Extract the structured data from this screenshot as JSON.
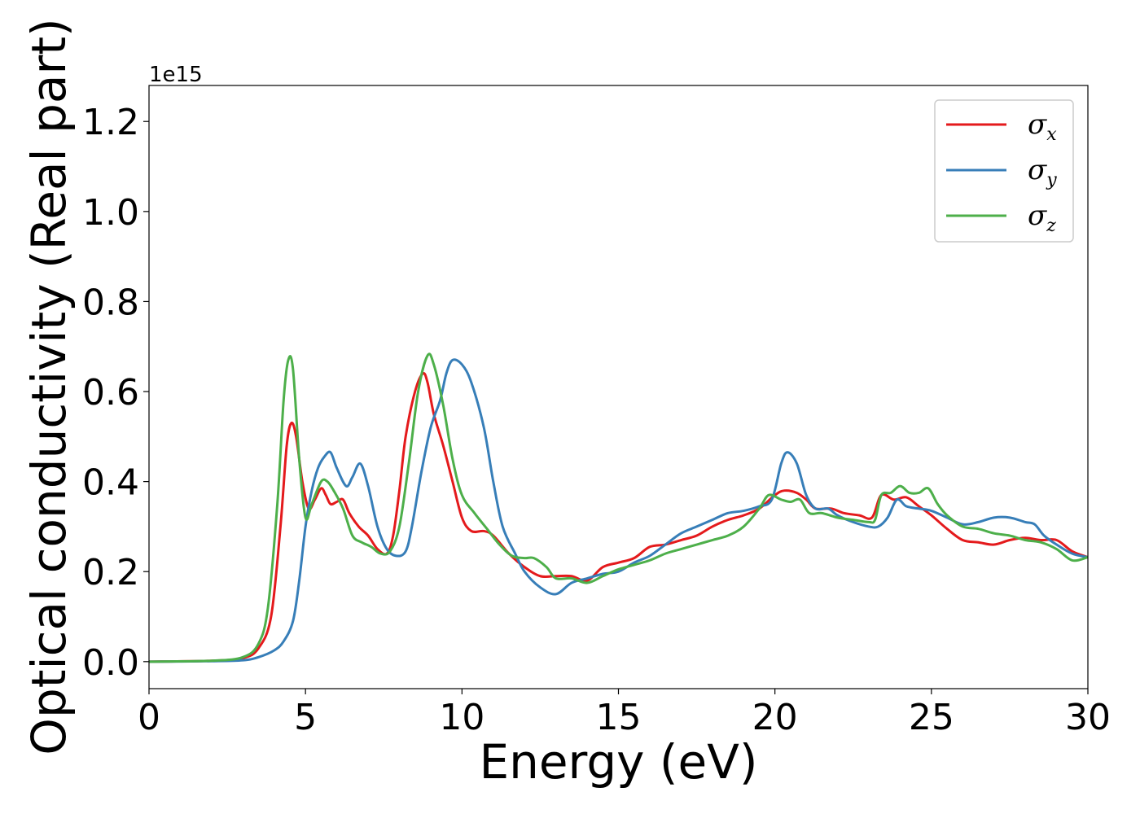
{
  "chart_data": {
    "type": "line",
    "title": "",
    "xlabel": "Energy (eV)",
    "ylabel": "Optical conductivity (Real part)",
    "y_offset_label": "1e15",
    "xlim": [
      0,
      30
    ],
    "ylim": [
      -0.06,
      1.28
    ],
    "x_ticks": [
      0,
      5,
      10,
      15,
      20,
      25,
      30
    ],
    "y_ticks": [
      0.0,
      0.2,
      0.4,
      0.6,
      0.8,
      1.0,
      1.2
    ],
    "x_tick_labels": [
      "0",
      "5",
      "10",
      "15",
      "20",
      "25",
      "30"
    ],
    "y_tick_labels": [
      "0.0",
      "0.2",
      "0.4",
      "0.6",
      "0.8",
      "1.0",
      "1.2"
    ],
    "grid": false,
    "legend_position": "top-right",
    "series": [
      {
        "name": "σx",
        "symbol": "σ",
        "subscript": "x",
        "color": "#e41a1c",
        "points": [
          [
            0,
            0.0
          ],
          [
            2,
            0.002
          ],
          [
            3,
            0.008
          ],
          [
            3.5,
            0.03
          ],
          [
            3.9,
            0.1
          ],
          [
            4.2,
            0.3
          ],
          [
            4.4,
            0.48
          ],
          [
            4.55,
            0.53
          ],
          [
            4.7,
            0.5
          ],
          [
            4.9,
            0.4
          ],
          [
            5.1,
            0.34
          ],
          [
            5.3,
            0.36
          ],
          [
            5.5,
            0.385
          ],
          [
            5.65,
            0.37
          ],
          [
            5.8,
            0.35
          ],
          [
            6.0,
            0.355
          ],
          [
            6.2,
            0.36
          ],
          [
            6.4,
            0.33
          ],
          [
            6.7,
            0.3
          ],
          [
            7.0,
            0.28
          ],
          [
            7.3,
            0.25
          ],
          [
            7.6,
            0.24
          ],
          [
            7.8,
            0.28
          ],
          [
            8.0,
            0.38
          ],
          [
            8.2,
            0.5
          ],
          [
            8.5,
            0.6
          ],
          [
            8.75,
            0.64
          ],
          [
            8.9,
            0.62
          ],
          [
            9.1,
            0.55
          ],
          [
            9.4,
            0.48
          ],
          [
            9.7,
            0.4
          ],
          [
            10.0,
            0.32
          ],
          [
            10.3,
            0.29
          ],
          [
            10.7,
            0.29
          ],
          [
            11.0,
            0.28
          ],
          [
            11.5,
            0.24
          ],
          [
            12.0,
            0.21
          ],
          [
            12.5,
            0.19
          ],
          [
            13.0,
            0.19
          ],
          [
            13.5,
            0.19
          ],
          [
            14.0,
            0.18
          ],
          [
            14.5,
            0.21
          ],
          [
            15.0,
            0.22
          ],
          [
            15.5,
            0.23
          ],
          [
            16.0,
            0.255
          ],
          [
            16.5,
            0.26
          ],
          [
            17.0,
            0.27
          ],
          [
            17.5,
            0.28
          ],
          [
            18.0,
            0.3
          ],
          [
            18.5,
            0.315
          ],
          [
            19.0,
            0.325
          ],
          [
            19.5,
            0.34
          ],
          [
            20.0,
            0.37
          ],
          [
            20.3,
            0.38
          ],
          [
            20.7,
            0.375
          ],
          [
            21.0,
            0.36
          ],
          [
            21.3,
            0.34
          ],
          [
            21.8,
            0.34
          ],
          [
            22.2,
            0.33
          ],
          [
            22.7,
            0.325
          ],
          [
            23.1,
            0.32
          ],
          [
            23.4,
            0.37
          ],
          [
            23.8,
            0.36
          ],
          [
            24.2,
            0.365
          ],
          [
            24.6,
            0.345
          ],
          [
            25.0,
            0.325
          ],
          [
            25.5,
            0.295
          ],
          [
            26.0,
            0.27
          ],
          [
            26.5,
            0.265
          ],
          [
            27.0,
            0.26
          ],
          [
            27.5,
            0.27
          ],
          [
            28.0,
            0.275
          ],
          [
            28.5,
            0.27
          ],
          [
            29.0,
            0.27
          ],
          [
            29.5,
            0.245
          ],
          [
            30.0,
            0.232
          ]
        ]
      },
      {
        "name": "σy",
        "symbol": "σ",
        "subscript": "y",
        "color": "#377eb8",
        "points": [
          [
            0,
            0.0
          ],
          [
            2,
            0.001
          ],
          [
            3,
            0.003
          ],
          [
            3.5,
            0.01
          ],
          [
            4.0,
            0.025
          ],
          [
            4.3,
            0.045
          ],
          [
            4.6,
            0.09
          ],
          [
            4.8,
            0.18
          ],
          [
            5.0,
            0.3
          ],
          [
            5.2,
            0.38
          ],
          [
            5.4,
            0.43
          ],
          [
            5.6,
            0.455
          ],
          [
            5.8,
            0.465
          ],
          [
            6.0,
            0.43
          ],
          [
            6.3,
            0.39
          ],
          [
            6.5,
            0.41
          ],
          [
            6.75,
            0.44
          ],
          [
            7.0,
            0.39
          ],
          [
            7.3,
            0.3
          ],
          [
            7.6,
            0.25
          ],
          [
            7.9,
            0.235
          ],
          [
            8.2,
            0.245
          ],
          [
            8.4,
            0.3
          ],
          [
            8.7,
            0.42
          ],
          [
            9.0,
            0.52
          ],
          [
            9.3,
            0.58
          ],
          [
            9.5,
            0.64
          ],
          [
            9.7,
            0.67
          ],
          [
            10.0,
            0.66
          ],
          [
            10.3,
            0.62
          ],
          [
            10.7,
            0.52
          ],
          [
            11.0,
            0.4
          ],
          [
            11.3,
            0.3
          ],
          [
            11.7,
            0.24
          ],
          [
            12.0,
            0.2
          ],
          [
            12.5,
            0.165
          ],
          [
            13.0,
            0.15
          ],
          [
            13.5,
            0.175
          ],
          [
            14.0,
            0.185
          ],
          [
            14.5,
            0.195
          ],
          [
            15.0,
            0.2
          ],
          [
            15.5,
            0.22
          ],
          [
            16.0,
            0.235
          ],
          [
            16.5,
            0.26
          ],
          [
            17.0,
            0.285
          ],
          [
            17.5,
            0.3
          ],
          [
            18.0,
            0.315
          ],
          [
            18.5,
            0.33
          ],
          [
            19.0,
            0.335
          ],
          [
            19.5,
            0.345
          ],
          [
            19.9,
            0.36
          ],
          [
            20.2,
            0.44
          ],
          [
            20.4,
            0.465
          ],
          [
            20.7,
            0.44
          ],
          [
            21.0,
            0.37
          ],
          [
            21.3,
            0.34
          ],
          [
            21.7,
            0.34
          ],
          [
            22.0,
            0.325
          ],
          [
            22.5,
            0.31
          ],
          [
            23.0,
            0.3
          ],
          [
            23.3,
            0.3
          ],
          [
            23.6,
            0.32
          ],
          [
            23.9,
            0.36
          ],
          [
            24.2,
            0.345
          ],
          [
            24.6,
            0.34
          ],
          [
            25.0,
            0.335
          ],
          [
            25.5,
            0.32
          ],
          [
            26.0,
            0.305
          ],
          [
            26.5,
            0.31
          ],
          [
            27.0,
            0.32
          ],
          [
            27.5,
            0.32
          ],
          [
            28.0,
            0.31
          ],
          [
            28.3,
            0.305
          ],
          [
            28.6,
            0.28
          ],
          [
            29.0,
            0.26
          ],
          [
            29.5,
            0.24
          ],
          [
            30.0,
            0.232
          ]
        ]
      },
      {
        "name": "σz",
        "symbol": "σ",
        "subscript": "z",
        "color": "#4daf4a",
        "points": [
          [
            0,
            0.0
          ],
          [
            2,
            0.002
          ],
          [
            3,
            0.01
          ],
          [
            3.5,
            0.04
          ],
          [
            3.8,
            0.12
          ],
          [
            4.1,
            0.35
          ],
          [
            4.3,
            0.58
          ],
          [
            4.45,
            0.67
          ],
          [
            4.6,
            0.65
          ],
          [
            4.8,
            0.45
          ],
          [
            5.0,
            0.32
          ],
          [
            5.2,
            0.35
          ],
          [
            5.5,
            0.4
          ],
          [
            5.7,
            0.4
          ],
          [
            5.9,
            0.38
          ],
          [
            6.2,
            0.34
          ],
          [
            6.5,
            0.28
          ],
          [
            6.8,
            0.265
          ],
          [
            7.1,
            0.255
          ],
          [
            7.4,
            0.24
          ],
          [
            7.7,
            0.245
          ],
          [
            8.0,
            0.3
          ],
          [
            8.3,
            0.44
          ],
          [
            8.6,
            0.6
          ],
          [
            8.9,
            0.68
          ],
          [
            9.1,
            0.66
          ],
          [
            9.4,
            0.57
          ],
          [
            9.7,
            0.45
          ],
          [
            10.0,
            0.37
          ],
          [
            10.4,
            0.33
          ],
          [
            10.8,
            0.295
          ],
          [
            11.2,
            0.26
          ],
          [
            11.6,
            0.235
          ],
          [
            12.0,
            0.23
          ],
          [
            12.3,
            0.23
          ],
          [
            12.7,
            0.21
          ],
          [
            13.0,
            0.185
          ],
          [
            13.5,
            0.185
          ],
          [
            14.0,
            0.175
          ],
          [
            14.5,
            0.19
          ],
          [
            15.0,
            0.205
          ],
          [
            15.5,
            0.215
          ],
          [
            16.0,
            0.225
          ],
          [
            16.5,
            0.24
          ],
          [
            17.0,
            0.25
          ],
          [
            17.5,
            0.26
          ],
          [
            18.0,
            0.27
          ],
          [
            18.5,
            0.28
          ],
          [
            19.0,
            0.3
          ],
          [
            19.5,
            0.34
          ],
          [
            19.8,
            0.37
          ],
          [
            20.2,
            0.36
          ],
          [
            20.5,
            0.355
          ],
          [
            20.8,
            0.36
          ],
          [
            21.1,
            0.33
          ],
          [
            21.5,
            0.33
          ],
          [
            22.0,
            0.32
          ],
          [
            22.5,
            0.315
          ],
          [
            23.0,
            0.31
          ],
          [
            23.2,
            0.315
          ],
          [
            23.4,
            0.37
          ],
          [
            23.7,
            0.375
          ],
          [
            24.0,
            0.39
          ],
          [
            24.3,
            0.375
          ],
          [
            24.6,
            0.375
          ],
          [
            24.9,
            0.385
          ],
          [
            25.2,
            0.35
          ],
          [
            25.5,
            0.325
          ],
          [
            26.0,
            0.3
          ],
          [
            26.5,
            0.295
          ],
          [
            27.0,
            0.285
          ],
          [
            27.5,
            0.28
          ],
          [
            28.0,
            0.27
          ],
          [
            28.5,
            0.265
          ],
          [
            29.0,
            0.25
          ],
          [
            29.5,
            0.225
          ],
          [
            30.0,
            0.232
          ]
        ]
      }
    ]
  }
}
